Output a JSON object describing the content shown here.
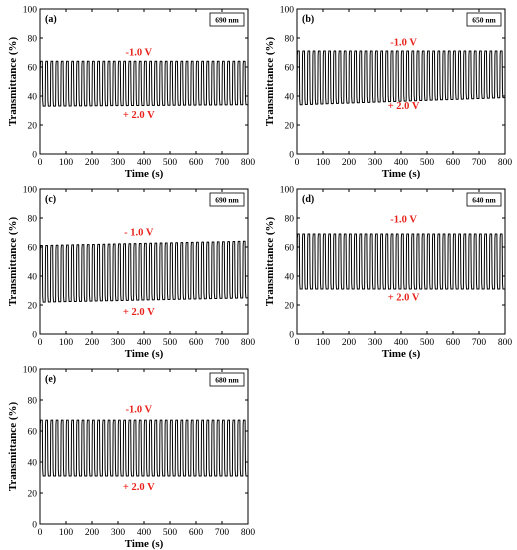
{
  "chart_data": [
    {
      "type": "line",
      "panel_label": "(a)",
      "wavelength_label": "690 nm",
      "xlabel": "Time (s)",
      "ylabel": "Transmittance (%)",
      "xlim": [
        0,
        800
      ],
      "ylim": [
        0,
        100
      ],
      "xticks": [
        0,
        100,
        200,
        300,
        400,
        500,
        600,
        700,
        800
      ],
      "yticks": [
        0,
        20,
        40,
        60,
        80,
        100
      ],
      "cycles": 40,
      "high_level": [
        64,
        64
      ],
      "low_level": [
        33,
        34
      ],
      "annotations": [
        {
          "text": "-1.0 V",
          "x": 380,
          "y": 68
        },
        {
          "text": "+ 2.0 V",
          "x": 380,
          "y": 25
        }
      ],
      "color": "#e8231b"
    },
    {
      "type": "line",
      "panel_label": "(b)",
      "wavelength_label": "650 nm",
      "xlabel": "Time (s)",
      "ylabel": "Transmittance (%)",
      "xlim": [
        0,
        800
      ],
      "ylim": [
        0,
        100
      ],
      "xticks": [
        0,
        100,
        200,
        300,
        400,
        500,
        600,
        700,
        800
      ],
      "yticks": [
        0,
        20,
        40,
        60,
        80,
        100
      ],
      "cycles": 40,
      "high_level": [
        71,
        71
      ],
      "low_level": [
        34,
        39
      ],
      "annotations": [
        {
          "text": "-1.0 V",
          "x": 410,
          "y": 75
        },
        {
          "text": "+ 2.0 V",
          "x": 410,
          "y": 31
        }
      ],
      "color": "#e8231b"
    },
    {
      "type": "line",
      "panel_label": "(c)",
      "wavelength_label": "690 nm",
      "xlabel": "Time (s)",
      "ylabel": "Transmittance (%)",
      "xlim": [
        0,
        800
      ],
      "ylim": [
        0,
        100
      ],
      "xticks": [
        0,
        100,
        200,
        300,
        400,
        500,
        600,
        700,
        800
      ],
      "yticks": [
        0,
        20,
        40,
        60,
        80,
        100
      ],
      "cycles": 40,
      "high_level": [
        61,
        64
      ],
      "low_level": [
        22,
        25
      ],
      "annotations": [
        {
          "text": "- 1.0 V",
          "x": 380,
          "y": 68
        },
        {
          "text": "+ 2.0 V",
          "x": 380,
          "y": 13
        }
      ],
      "color": "#e8231b"
    },
    {
      "type": "line",
      "panel_label": "(d)",
      "wavelength_label": "640 nm",
      "xlabel": "Time (s)",
      "ylabel": "Transmittance (%)",
      "xlim": [
        0,
        800
      ],
      "ylim": [
        0,
        100
      ],
      "xticks": [
        0,
        100,
        200,
        300,
        400,
        500,
        600,
        700,
        800
      ],
      "yticks": [
        0,
        20,
        40,
        60,
        80,
        100
      ],
      "cycles": 40,
      "high_level": [
        69,
        69
      ],
      "low_level": [
        31,
        31
      ],
      "annotations": [
        {
          "text": "-1.0 V",
          "x": 410,
          "y": 77
        },
        {
          "text": "+ 2.0 V",
          "x": 410,
          "y": 23
        }
      ],
      "color": "#e8231b"
    },
    {
      "type": "line",
      "panel_label": "(e)",
      "wavelength_label": "680 nm",
      "xlabel": "Time (s)",
      "ylabel": "Transmittance (%)",
      "xlim": [
        0,
        800
      ],
      "ylim": [
        0,
        100
      ],
      "xticks": [
        0,
        100,
        200,
        300,
        400,
        500,
        600,
        700,
        800
      ],
      "yticks": [
        0,
        20,
        40,
        60,
        80,
        100
      ],
      "cycles": 40,
      "high_level": [
        67,
        67
      ],
      "low_level": [
        31,
        31
      ],
      "annotations": [
        {
          "text": "-1.0 V",
          "x": 380,
          "y": 72
        },
        {
          "text": "+ 2.0 V",
          "x": 380,
          "y": 22
        }
      ],
      "color": "#e8231b"
    }
  ]
}
